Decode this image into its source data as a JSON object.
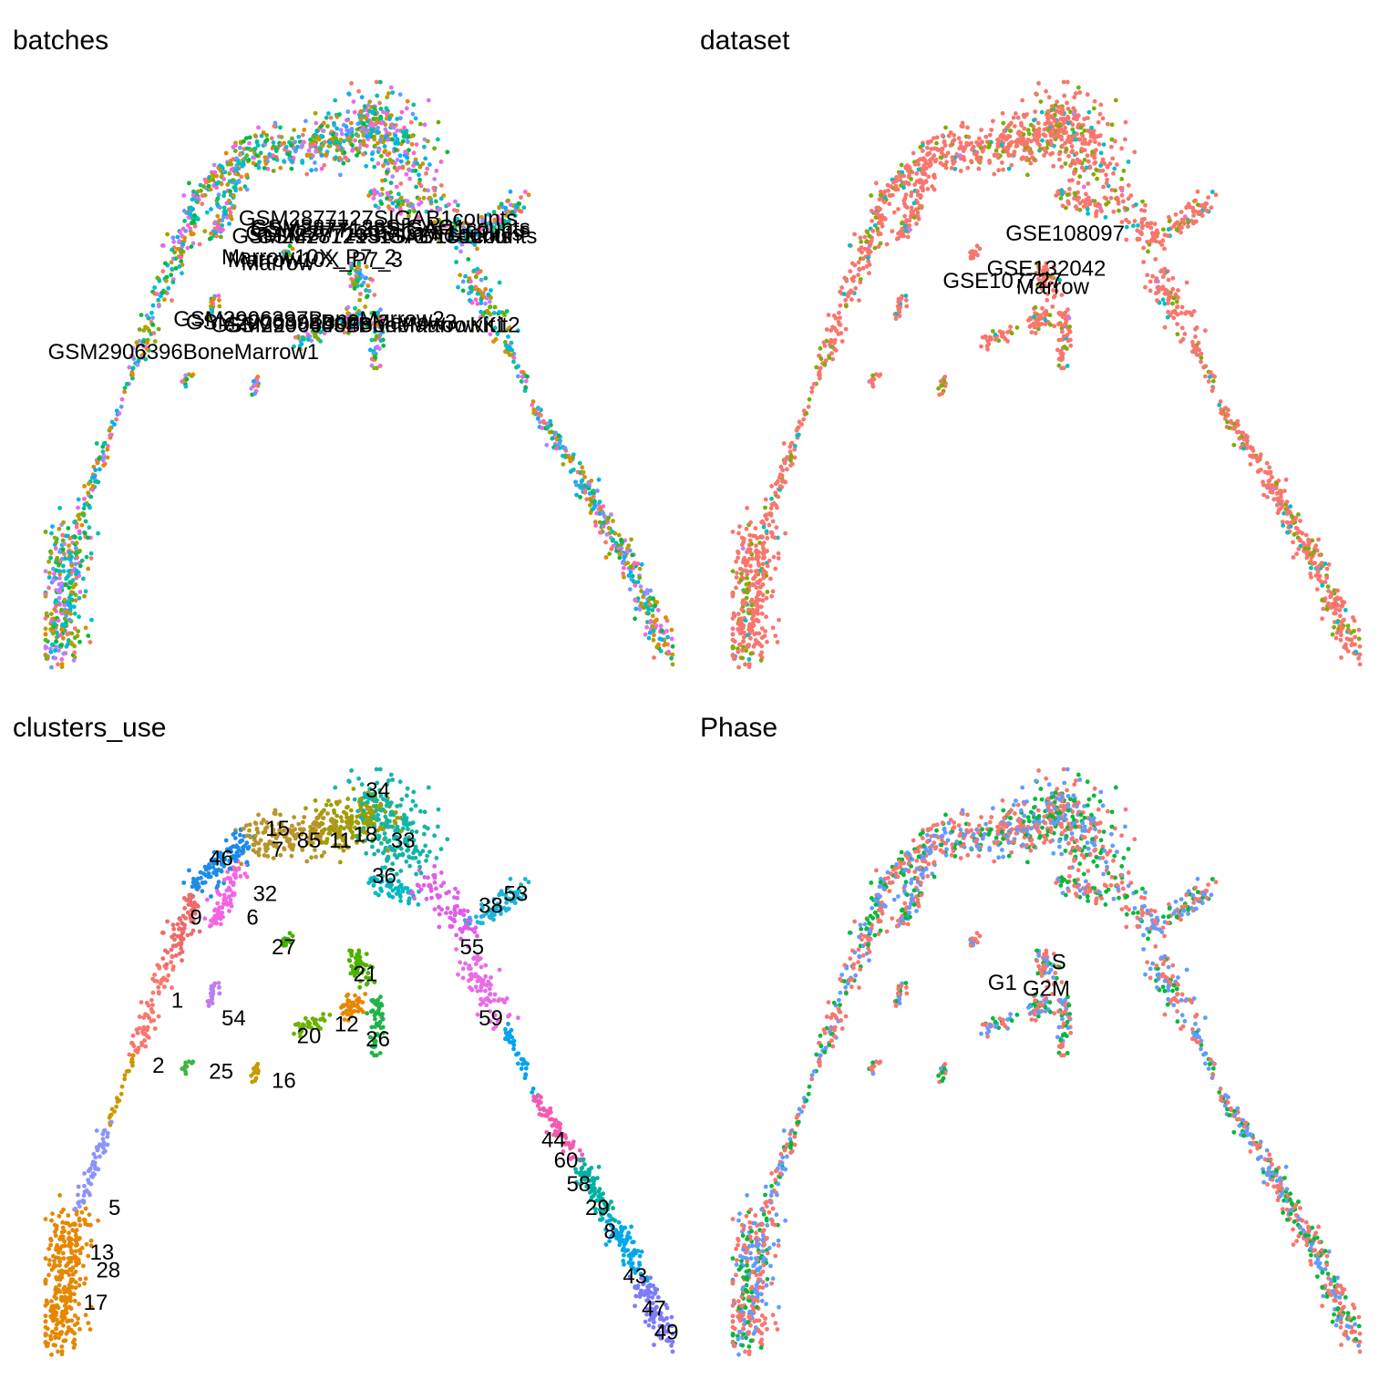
{
  "chart_data": [
    {
      "type": "scatter",
      "title": "batches",
      "color_mode": "mixed",
      "labels": [
        {
          "text": "GSM2877127SIGAB1counts",
          "x": 0.53,
          "y": 0.77
        },
        {
          "text": "GSM2877128SIGAC1counts",
          "x": 0.55,
          "y": 0.755
        },
        {
          "text": "GSM2877129SIGAD1counts",
          "x": 0.52,
          "y": 0.74
        },
        {
          "text": "GSM2877130SIGAF1counts",
          "x": 0.54,
          "y": 0.745
        },
        {
          "text": "GSM2877131SIGAG1counts",
          "x": 0.56,
          "y": 0.74
        },
        {
          "text": "GSM2877132SIGAH1counts",
          "x": 0.55,
          "y": 0.75
        },
        {
          "text": "Marrow10X_P7_2",
          "x": 0.42,
          "y": 0.705
        },
        {
          "text": "Marrow10X_P7_3",
          "x": 0.43,
          "y": 0.7
        },
        {
          "text": "Marrow",
          "x": 0.37,
          "y": 0.695
        },
        {
          "text": "GSM2906396BoneMarrow1",
          "x": 0.22,
          "y": 0.545
        },
        {
          "text": "GSM2906397BoneMarrow2",
          "x": 0.42,
          "y": 0.6
        },
        {
          "text": "GSM2906398BoneMarrow3",
          "x": 0.44,
          "y": 0.595
        },
        {
          "text": "GSM2906403BoneMarrowKit1",
          "x": 0.5,
          "y": 0.59
        },
        {
          "text": "GSM2906404BoneMarrowKit2",
          "x": 0.52,
          "y": 0.59
        }
      ],
      "categories": [
        "GSM2877127SIGAB1counts",
        "GSM2877128SIGAC1counts",
        "GSM2877129SIGAD1counts",
        "GSM2877130SIGAF1counts",
        "GSM2877131SIGAG1counts",
        "GSM2877132SIGAH1counts",
        "Marrow10X_P7_2",
        "Marrow10X_P7_3",
        "Marrow",
        "GSM2906396BoneMarrow1",
        "GSM2906397BoneMarrow2",
        "GSM2906398BoneMarrow3",
        "GSM2906403BoneMarrowKit1",
        "GSM2906404BoneMarrowKit2"
      ],
      "palette": [
        "#F8766D",
        "#E58700",
        "#C99800",
        "#A3A500",
        "#6BB100",
        "#00BA38",
        "#00BF7D",
        "#00C0AF",
        "#00BCD8",
        "#00B0F6",
        "#619CFF",
        "#B983FF",
        "#E76BF3",
        "#FD61D1"
      ]
    },
    {
      "type": "scatter",
      "title": "dataset",
      "color_mode": "dataset",
      "labels": [
        {
          "text": "GSE108097",
          "x": 0.53,
          "y": 0.745
        },
        {
          "text": "GSE132042",
          "x": 0.5,
          "y": 0.685
        },
        {
          "text": "GSE107727",
          "x": 0.43,
          "y": 0.665
        },
        {
          "text": "Marrow",
          "x": 0.51,
          "y": 0.655
        }
      ],
      "categories": [
        "GSE107727",
        "GSE108097",
        "GSE132042",
        "Marrow"
      ],
      "palette": [
        "#F8766D",
        "#7CAE00",
        "#00BFC4",
        "#C77CFF"
      ]
    },
    {
      "type": "scatter",
      "title": "clusters_use",
      "color_mode": "clusters",
      "labels": [
        {
          "text": "34",
          "x": 0.53,
          "y": 0.965
        },
        {
          "text": "15",
          "x": 0.37,
          "y": 0.9
        },
        {
          "text": "85",
          "x": 0.42,
          "y": 0.88
        },
        {
          "text": "11",
          "x": 0.47,
          "y": 0.88
        },
        {
          "text": "18",
          "x": 0.51,
          "y": 0.89
        },
        {
          "text": "33",
          "x": 0.57,
          "y": 0.88
        },
        {
          "text": "7",
          "x": 0.37,
          "y": 0.865
        },
        {
          "text": "46",
          "x": 0.28,
          "y": 0.85
        },
        {
          "text": "36",
          "x": 0.54,
          "y": 0.82
        },
        {
          "text": "32",
          "x": 0.35,
          "y": 0.79
        },
        {
          "text": "53",
          "x": 0.75,
          "y": 0.79
        },
        {
          "text": "38",
          "x": 0.71,
          "y": 0.77
        },
        {
          "text": "9",
          "x": 0.24,
          "y": 0.75
        },
        {
          "text": "6",
          "x": 0.33,
          "y": 0.75
        },
        {
          "text": "27",
          "x": 0.38,
          "y": 0.7
        },
        {
          "text": "55",
          "x": 0.68,
          "y": 0.7
        },
        {
          "text": "21",
          "x": 0.51,
          "y": 0.655
        },
        {
          "text": "1",
          "x": 0.21,
          "y": 0.61
        },
        {
          "text": "54",
          "x": 0.3,
          "y": 0.58
        },
        {
          "text": "59",
          "x": 0.71,
          "y": 0.58
        },
        {
          "text": "12",
          "x": 0.48,
          "y": 0.57
        },
        {
          "text": "20",
          "x": 0.42,
          "y": 0.55
        },
        {
          "text": "26",
          "x": 0.53,
          "y": 0.545
        },
        {
          "text": "2",
          "x": 0.18,
          "y": 0.5
        },
        {
          "text": "25",
          "x": 0.28,
          "y": 0.49
        },
        {
          "text": "16",
          "x": 0.38,
          "y": 0.475
        },
        {
          "text": "44",
          "x": 0.81,
          "y": 0.375
        },
        {
          "text": "60",
          "x": 0.83,
          "y": 0.34
        },
        {
          "text": "58",
          "x": 0.85,
          "y": 0.3
        },
        {
          "text": "29",
          "x": 0.88,
          "y": 0.26
        },
        {
          "text": "5",
          "x": 0.11,
          "y": 0.26
        },
        {
          "text": "8",
          "x": 0.9,
          "y": 0.22
        },
        {
          "text": "13",
          "x": 0.09,
          "y": 0.185
        },
        {
          "text": "28",
          "x": 0.1,
          "y": 0.155
        },
        {
          "text": "43",
          "x": 0.94,
          "y": 0.145
        },
        {
          "text": "47",
          "x": 0.97,
          "y": 0.09
        },
        {
          "text": "17",
          "x": 0.08,
          "y": 0.1
        },
        {
          "text": "49",
          "x": 0.99,
          "y": 0.05
        }
      ],
      "categories": [
        "1",
        "2",
        "5",
        "6",
        "7",
        "8",
        "9",
        "11",
        "12",
        "13",
        "15",
        "16",
        "17",
        "18",
        "20",
        "21",
        "25",
        "26",
        "27",
        "28",
        "29",
        "32",
        "33",
        "34",
        "36",
        "38",
        "43",
        "44",
        "46",
        "47",
        "49",
        "53",
        "54",
        "55",
        "58",
        "59",
        "60",
        "85"
      ]
    },
    {
      "type": "scatter",
      "title": "Phase",
      "color_mode": "phase",
      "labels": [
        {
          "text": "S",
          "x": 0.52,
          "y": 0.675
        },
        {
          "text": "G1",
          "x": 0.43,
          "y": 0.64
        },
        {
          "text": "G2M",
          "x": 0.5,
          "y": 0.63
        }
      ],
      "categories": [
        "G1",
        "G2M",
        "S"
      ],
      "palette": [
        "#F8766D",
        "#00BA38",
        "#619CFF"
      ]
    }
  ]
}
